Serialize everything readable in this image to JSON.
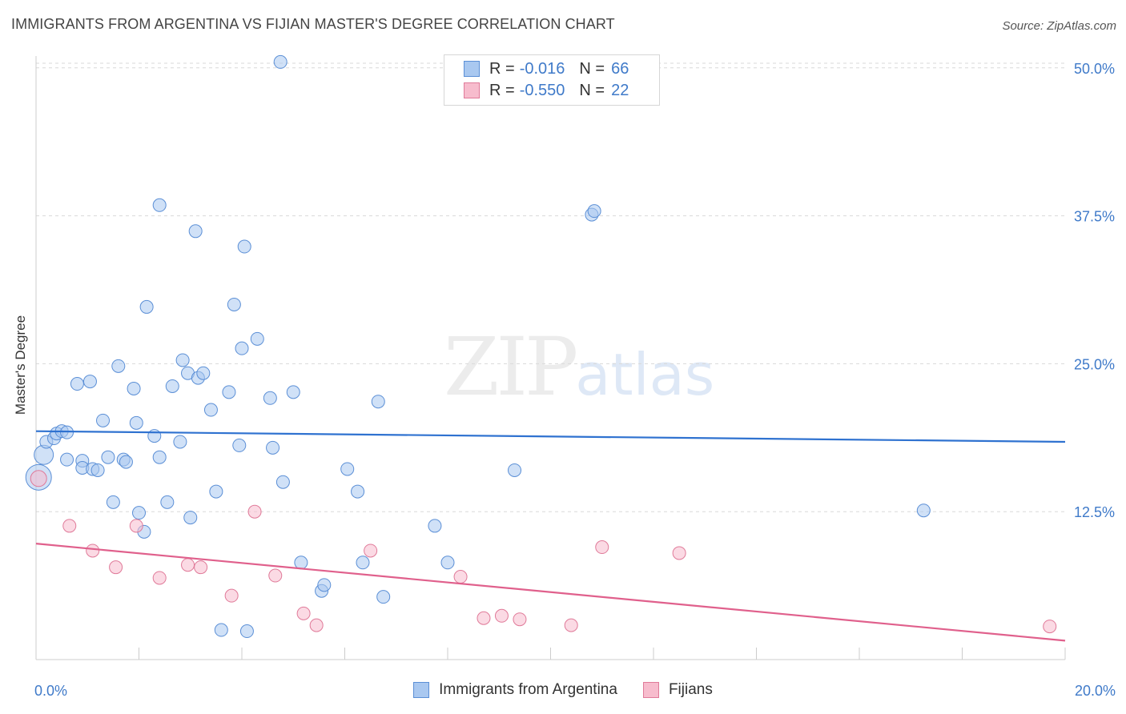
{
  "title": "IMMIGRANTS FROM ARGENTINA VS FIJIAN MASTER'S DEGREE CORRELATION CHART",
  "source": "Source: ZipAtlas.com",
  "watermark": {
    "zip": "ZIP",
    "atlas": "atlas"
  },
  "legend": {
    "rows": [
      {
        "r_label": "R =",
        "r_value": "-0.016",
        "n_label": "N =",
        "n_value": "66"
      },
      {
        "r_label": "R =",
        "r_value": "-0.550",
        "n_label": "N =",
        "n_value": "22"
      }
    ]
  },
  "chart_data": {
    "type": "scatter",
    "title": "IMMIGRANTS FROM ARGENTINA VS FIJIAN MASTER'S DEGREE CORRELATION CHART",
    "xlabel": "",
    "ylabel": "Master's Degree",
    "xlim": [
      0,
      20
    ],
    "ylim": [
      0,
      51
    ],
    "x_tick_labels": [
      "0.0%",
      "20.0%"
    ],
    "y_ticks": [
      12.5,
      25.0,
      37.5,
      50.0
    ],
    "y_tick_labels": [
      "12.5%",
      "25.0%",
      "37.5%",
      "50.0%"
    ],
    "grid": true,
    "series": [
      {
        "name": "Immigrants from Argentina",
        "color": "#a9c8f0",
        "edge_color": "#5b8fd6",
        "line_color": "#2f72d0",
        "trend": [
          [
            0,
            19.3
          ],
          [
            20,
            18.4
          ]
        ],
        "points": [
          [
            0.05,
            15.4,
            16
          ],
          [
            0.15,
            17.3,
            12
          ],
          [
            0.2,
            18.4,
            8
          ],
          [
            0.35,
            18.7,
            8
          ],
          [
            0.4,
            19.1,
            8
          ],
          [
            0.5,
            19.3,
            8
          ],
          [
            0.6,
            19.2,
            8
          ],
          [
            0.6,
            16.9,
            8
          ],
          [
            0.8,
            23.3,
            8
          ],
          [
            0.9,
            16.8,
            8
          ],
          [
            0.9,
            16.2,
            8
          ],
          [
            1.05,
            23.5,
            8
          ],
          [
            1.1,
            16.1,
            8
          ],
          [
            1.2,
            16.0,
            8
          ],
          [
            1.3,
            20.2,
            8
          ],
          [
            1.4,
            17.1,
            8
          ],
          [
            1.5,
            13.3,
            8
          ],
          [
            1.6,
            24.8,
            8
          ],
          [
            1.7,
            16.9,
            8
          ],
          [
            1.75,
            16.7,
            8
          ],
          [
            1.9,
            22.9,
            8
          ],
          [
            1.95,
            20.0,
            8
          ],
          [
            2.0,
            12.4,
            8
          ],
          [
            2.1,
            10.8,
            8
          ],
          [
            2.15,
            29.8,
            8
          ],
          [
            2.3,
            18.9,
            8
          ],
          [
            2.4,
            17.1,
            8
          ],
          [
            2.4,
            38.4,
            8
          ],
          [
            2.55,
            13.3,
            8
          ],
          [
            2.65,
            23.1,
            8
          ],
          [
            2.8,
            18.4,
            8
          ],
          [
            2.85,
            25.3,
            8
          ],
          [
            2.95,
            24.2,
            8
          ],
          [
            3.0,
            12.0,
            8
          ],
          [
            3.1,
            36.2,
            8
          ],
          [
            3.15,
            23.8,
            8
          ],
          [
            3.25,
            24.2,
            8
          ],
          [
            3.4,
            21.1,
            8
          ],
          [
            3.5,
            14.2,
            8
          ],
          [
            3.6,
            2.5,
            8
          ],
          [
            3.75,
            22.6,
            8
          ],
          [
            3.85,
            30.0,
            8
          ],
          [
            3.95,
            18.1,
            8
          ],
          [
            4.0,
            26.3,
            8
          ],
          [
            4.05,
            34.9,
            8
          ],
          [
            4.1,
            2.4,
            8
          ],
          [
            4.3,
            27.1,
            8
          ],
          [
            4.55,
            22.1,
            8
          ],
          [
            4.6,
            17.9,
            8
          ],
          [
            4.75,
            50.5,
            8
          ],
          [
            4.8,
            15.0,
            8
          ],
          [
            5.0,
            22.6,
            8
          ],
          [
            5.15,
            8.2,
            8
          ],
          [
            5.55,
            5.8,
            8
          ],
          [
            5.6,
            6.3,
            8
          ],
          [
            6.05,
            16.1,
            8
          ],
          [
            6.25,
            14.2,
            8
          ],
          [
            6.35,
            8.2,
            8
          ],
          [
            6.65,
            21.8,
            8
          ],
          [
            6.75,
            5.3,
            8
          ],
          [
            7.75,
            11.3,
            8
          ],
          [
            8.0,
            8.2,
            8
          ],
          [
            9.3,
            16.0,
            8
          ],
          [
            10.8,
            37.6,
            8
          ],
          [
            10.85,
            37.9,
            8
          ],
          [
            17.25,
            12.6,
            8
          ]
        ]
      },
      {
        "name": "Fijians",
        "color": "#f7bccd",
        "edge_color": "#e07a99",
        "line_color": "#e0608c",
        "trend": [
          [
            0,
            9.8
          ],
          [
            20,
            1.6
          ]
        ],
        "points": [
          [
            0.05,
            15.3,
            10
          ],
          [
            0.65,
            11.3,
            8
          ],
          [
            1.1,
            9.2,
            8
          ],
          [
            1.55,
            7.8,
            8
          ],
          [
            1.95,
            11.3,
            8
          ],
          [
            2.4,
            6.9,
            8
          ],
          [
            2.95,
            8.0,
            8
          ],
          [
            3.2,
            7.8,
            8
          ],
          [
            3.8,
            5.4,
            8
          ],
          [
            4.25,
            12.5,
            8
          ],
          [
            4.65,
            7.1,
            8
          ],
          [
            5.2,
            3.9,
            8
          ],
          [
            5.45,
            2.9,
            8
          ],
          [
            6.5,
            9.2,
            8
          ],
          [
            8.25,
            7.0,
            8
          ],
          [
            8.7,
            3.5,
            8
          ],
          [
            9.05,
            3.7,
            8
          ],
          [
            9.4,
            3.4,
            8
          ],
          [
            10.4,
            2.9,
            8
          ],
          [
            11.0,
            9.5,
            8
          ],
          [
            12.5,
            9.0,
            8
          ],
          [
            19.7,
            2.8,
            8
          ]
        ]
      }
    ]
  }
}
